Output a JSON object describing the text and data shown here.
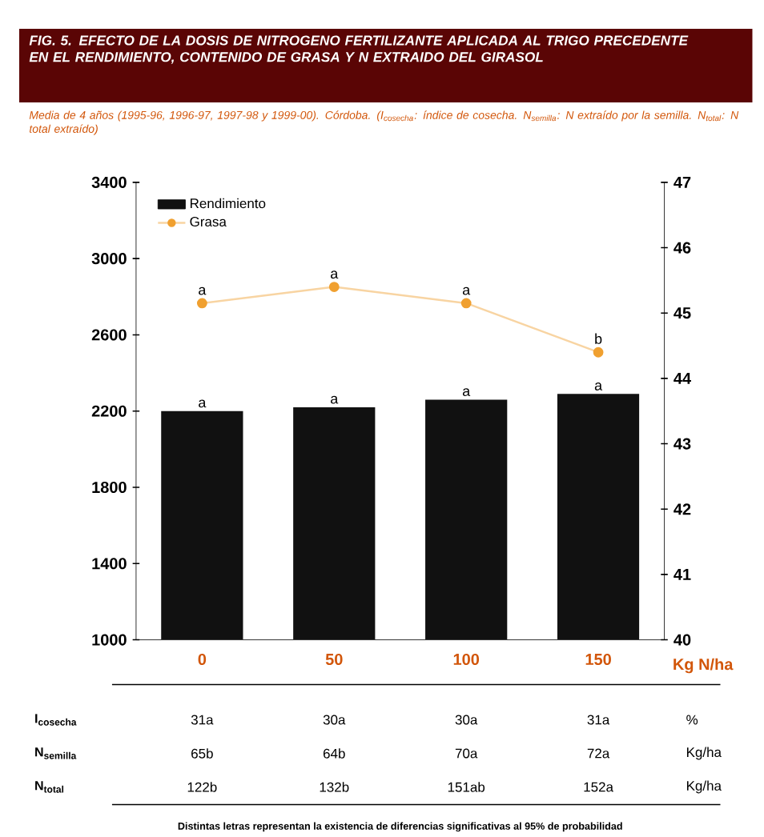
{
  "chart_data": {
    "type": "bar",
    "title": "FIG. 5. EFECTO DE LA DOSIS DE NITROGENO FERTILIZANTE APLICADA AL TRIGO PRECEDENTE EN EL RENDIMIENTO, CONTENIDO DE GRASA Y N EXTRAIDO DEL GIRASOL",
    "subtitle": "Media de 4 años (1995-96, 1996-97, 1997-98 y 1999-00). Córdoba. (I$_{cosecha}$: índice de cosecha. N$_{semilla}$: N extraído por la semilla. N$_{total}$: N total extraído)",
    "categories": [
      "0",
      "50",
      "100",
      "150"
    ],
    "xlabel": "Kg N/ha",
    "series": [
      {
        "name": "Rendimiento",
        "color": "#111111",
        "values": [
          2200,
          2220,
          2260,
          2290
        ],
        "value_labels": [
          "a",
          "a",
          "a",
          "a"
        ]
      },
      {
        "name": "Grasa",
        "type": "line",
        "axis": "y2",
        "marker": "circle",
        "color": "#f0a030",
        "values": [
          45.15,
          45.4,
          45.15,
          44.4
        ],
        "value_labels": [
          "a",
          "a",
          "a",
          "b"
        ]
      }
    ],
    "ylim": [
      1000,
      3400
    ],
    "yticks": [
      1000,
      1400,
      1800,
      2200,
      2600,
      3000,
      3400
    ],
    "y2lim": [
      40,
      47
    ],
    "y2ticks": [
      40,
      41,
      42,
      43,
      44,
      45,
      46,
      47
    ],
    "legend": "top left",
    "grid": false,
    "annotations": [
      "I$_{cosecha}$",
      "31a",
      "30a",
      "30a",
      "31a",
      "%",
      "N$_{semilla}$",
      "65b",
      "64b",
      "70a",
      "72a",
      "Kg/ha",
      "N$_{total}$",
      "122b",
      "132b",
      "151ab",
      "152a",
      "Kg/ha",
      "Distintas letras representan la existencia de diferencias significativas al 95% de probabilidad"
    ]
  }
}
